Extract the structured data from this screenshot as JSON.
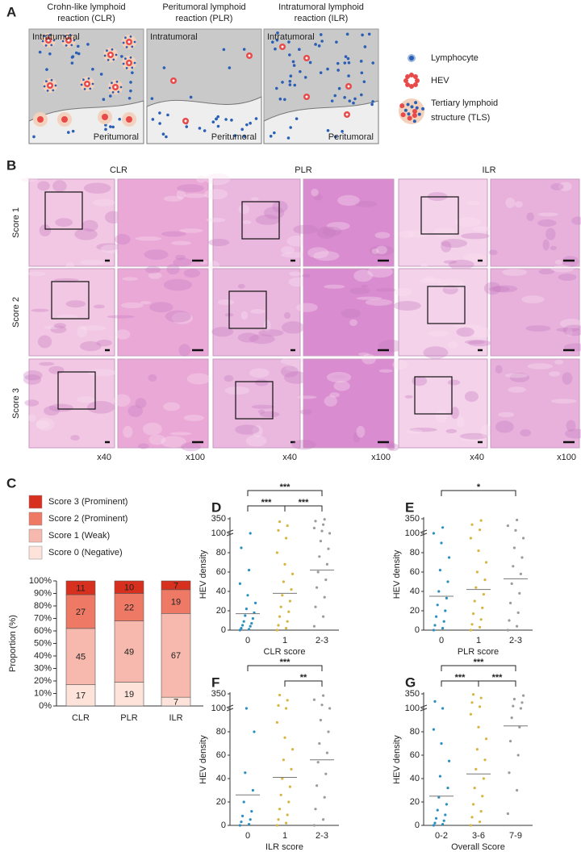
{
  "panel_a": {
    "letter": "A",
    "columns": [
      {
        "title": [
          "Crohn-like lymphoid",
          "reaction (CLR)"
        ],
        "top": "Intratumoral",
        "bottom": "Peritumoral"
      },
      {
        "title": [
          "Peritumoral lymphoid",
          "reaction (PLR)"
        ],
        "top": "Intratumoral",
        "bottom": "Peritumoral"
      },
      {
        "title": [
          "Intratumoral lymphoid",
          "reaction (ILR)"
        ],
        "top": "Intratumoral",
        "bottom": "Peritumoral"
      }
    ],
    "legend": [
      [
        "Lymphocyte"
      ],
      [
        "HEV"
      ],
      [
        "Tertiary lymphoid",
        "structure (TLS)"
      ]
    ]
  },
  "panel_b": {
    "letter": "B",
    "columns": [
      "CLR",
      "PLR",
      "ILR"
    ],
    "rows": [
      "Score 1",
      "Score 2",
      "Score 3"
    ],
    "magnifications": [
      "x40",
      "x100"
    ]
  },
  "chart_data": [
    {
      "type": "stacked_bar",
      "panel": "C",
      "ylabel": "Proportion (%)",
      "categories": [
        "CLR",
        "PLR",
        "ILR"
      ],
      "series": [
        {
          "name": "Score 0 (Negative)",
          "color": "#fde3da",
          "values": [
            17,
            19,
            7
          ]
        },
        {
          "name": "Score 1 (Weak)",
          "color": "#f7b9ad",
          "values": [
            45,
            49,
            67
          ]
        },
        {
          "name": "Score 2 (Prominent)",
          "color": "#ee7a66",
          "values": [
            27,
            22,
            19
          ]
        },
        {
          "name": "Score 3 (Prominent)",
          "color": "#d8301e",
          "values": [
            11,
            10,
            7
          ]
        }
      ],
      "ylim": [
        0,
        100
      ],
      "yticks": [
        {
          "value": 0,
          "label": "0%"
        },
        {
          "value": 10,
          "label": "10%"
        },
        {
          "value": 20,
          "label": "20%"
        },
        {
          "value": 30,
          "label": "30%"
        },
        {
          "value": 40,
          "label": "40%"
        },
        {
          "value": 50,
          "label": "50%"
        },
        {
          "value": 60,
          "label": "60%"
        },
        {
          "value": 70,
          "label": "70%"
        },
        {
          "value": 80,
          "label": "80%"
        },
        {
          "value": 90,
          "label": "90%"
        },
        {
          "value": 100,
          "label": "100%"
        }
      ]
    },
    {
      "type": "dot",
      "panel": "D",
      "ylabel": "HEV density",
      "xlabel": "CLR score",
      "categories": [
        "0",
        "1",
        "2-3"
      ],
      "ylim": [
        0,
        350
      ],
      "axis_break": 100,
      "yticks": [
        0,
        20,
        40,
        60,
        80,
        100,
        350
      ],
      "groups": [
        {
          "color": "#2b8fc0",
          "mean": 17,
          "values": [
            0,
            1,
            2,
            4,
            5,
            7,
            9,
            12,
            15,
            18,
            22,
            28,
            36,
            48,
            62,
            85,
            100
          ]
        },
        {
          "color": "#d7b440",
          "mean": 38,
          "values": [
            0,
            2,
            5,
            9,
            14,
            19,
            24,
            30,
            36,
            42,
            50,
            58,
            68,
            80,
            95,
            150,
            230,
            300
          ]
        },
        {
          "color": "#9b9b9b",
          "mean": 62,
          "values": [
            4,
            14,
            24,
            34,
            44,
            52,
            60,
            68,
            76,
            84,
            92,
            100,
            140,
            190,
            250,
            310,
            340
          ]
        }
      ],
      "significance": [
        {
          "label": "***",
          "from": 0,
          "to": 2
        },
        {
          "label": "***",
          "from": 0,
          "to": 1
        },
        {
          "label": "***",
          "from": 1,
          "to": 2
        }
      ]
    },
    {
      "type": "dot",
      "panel": "E",
      "ylabel": "HEV density",
      "xlabel": "PLR score",
      "categories": [
        "0",
        "1",
        "2-3"
      ],
      "ylim": [
        0,
        350
      ],
      "axis_break": 100,
      "yticks": [
        0,
        20,
        40,
        60,
        80,
        100,
        350
      ],
      "groups": [
        {
          "color": "#2b8fc0",
          "mean": 35,
          "values": [
            0,
            2,
            5,
            9,
            14,
            20,
            26,
            33,
            40,
            50,
            62,
            75,
            90,
            100,
            200
          ]
        },
        {
          "color": "#d7b440",
          "mean": 42,
          "values": [
            0,
            3,
            6,
            11,
            17,
            23,
            30,
            37,
            44,
            52,
            60,
            70,
            82,
            95,
            160,
            250,
            320
          ]
        },
        {
          "color": "#9b9b9b",
          "mean": 53,
          "values": [
            0,
            4,
            10,
            18,
            28,
            38,
            48,
            58,
            66,
            75,
            85,
            95,
            150,
            230,
            330
          ]
        }
      ],
      "significance": [
        {
          "label": "*",
          "from": 0,
          "to": 2
        }
      ]
    },
    {
      "type": "dot",
      "panel": "F",
      "ylabel": "HEV density",
      "xlabel": "ILR score",
      "categories": [
        "0",
        "1",
        "2-3"
      ],
      "ylim": [
        0,
        350
      ],
      "axis_break": 100,
      "yticks": [
        0,
        20,
        40,
        60,
        80,
        100,
        350
      ],
      "groups": [
        {
          "color": "#2b8fc0",
          "mean": 26,
          "values": [
            0,
            1,
            3,
            5,
            8,
            12,
            20,
            30,
            45,
            80,
            100
          ]
        },
        {
          "color": "#d7b440",
          "mean": 41,
          "values": [
            0,
            2,
            5,
            9,
            14,
            20,
            26,
            33,
            40,
            48,
            56,
            65,
            75,
            88,
            100,
            150,
            240,
            330
          ]
        },
        {
          "color": "#9b9b9b",
          "mean": 56,
          "values": [
            0,
            5,
            14,
            24,
            34,
            44,
            54,
            62,
            70,
            80,
            90,
            100,
            160,
            250,
            320
          ]
        }
      ],
      "significance": [
        {
          "label": "***",
          "from": 0,
          "to": 2
        },
        {
          "label": "**",
          "from": 1,
          "to": 2
        }
      ]
    },
    {
      "type": "dot",
      "panel": "G",
      "ylabel": "HEV density",
      "xlabel": "Overall Score",
      "categories": [
        "0-2",
        "3-6",
        "7-9"
      ],
      "ylim": [
        0,
        350
      ],
      "axis_break": 100,
      "yticks": [
        0,
        20,
        40,
        60,
        80,
        100,
        350
      ],
      "groups": [
        {
          "color": "#2b8fc0",
          "mean": 25,
          "values": [
            0,
            1,
            2,
            4,
            6,
            9,
            13,
            18,
            24,
            32,
            42,
            55,
            70,
            82,
            100,
            220
          ]
        },
        {
          "color": "#d7b440",
          "mean": 44,
          "values": [
            0,
            3,
            7,
            12,
            18,
            25,
            32,
            40,
            48,
            56,
            65,
            74,
            84,
            95,
            130,
            200,
            280,
            340
          ]
        },
        {
          "color": "#9b9b9b",
          "mean": 85,
          "values": [
            10,
            30,
            45,
            60,
            72,
            84,
            92,
            100,
            140,
            200,
            260,
            320
          ]
        }
      ],
      "significance": [
        {
          "label": "***",
          "from": 0,
          "to": 2
        },
        {
          "label": "***",
          "from": 0,
          "to": 1
        },
        {
          "label": "***",
          "from": 1,
          "to": 2
        }
      ]
    }
  ]
}
